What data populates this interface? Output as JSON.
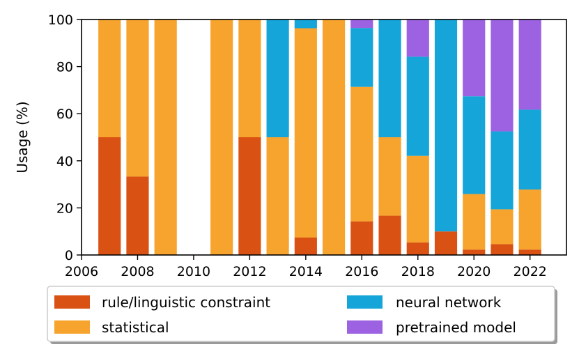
{
  "chart_data": {
    "type": "bar",
    "stacked": true,
    "title": "",
    "xlabel": "",
    "ylabel": "Usage (%)",
    "xlim": [
      2006,
      2023.3
    ],
    "ylim": [
      0,
      100
    ],
    "xticks": [
      2006,
      2008,
      2010,
      2012,
      2014,
      2016,
      2018,
      2020,
      2022
    ],
    "yticks": [
      0,
      20,
      40,
      60,
      80,
      100
    ],
    "x": [
      2007,
      2008,
      2009,
      2010,
      2011,
      2012,
      2013,
      2014,
      2015,
      2016,
      2017,
      2018,
      2019,
      2020,
      2021,
      2022
    ],
    "series": [
      {
        "name": "rule/linguistic constraint",
        "color": "#d95214",
        "values": [
          50,
          33.3,
          0,
          0,
          0,
          50,
          0,
          7.4,
          0,
          14.3,
          16.7,
          5.3,
          10,
          2.3,
          4.6,
          2.3
        ]
      },
      {
        "name": "statistical",
        "color": "#f7a42e",
        "values": [
          50,
          66.7,
          100,
          0,
          100,
          50,
          50,
          88.9,
          100,
          57.1,
          33.3,
          36.8,
          0,
          23.6,
          14.8,
          25.5
        ]
      },
      {
        "name": "neural network",
        "color": "#16a5d8",
        "values": [
          0,
          0,
          0,
          0,
          0,
          0,
          50,
          3.7,
          0,
          25,
          50,
          42.1,
          90,
          41.5,
          33.1,
          33.9
        ]
      },
      {
        "name": "pretrained model",
        "color": "#9c62e2",
        "values": [
          0,
          0,
          0,
          0,
          0,
          0,
          0,
          0,
          0,
          3.6,
          0,
          15.8,
          0,
          32.6,
          47.5,
          38.3
        ]
      }
    ],
    "legend": {
      "position": "bottom",
      "columns": 2
    }
  }
}
